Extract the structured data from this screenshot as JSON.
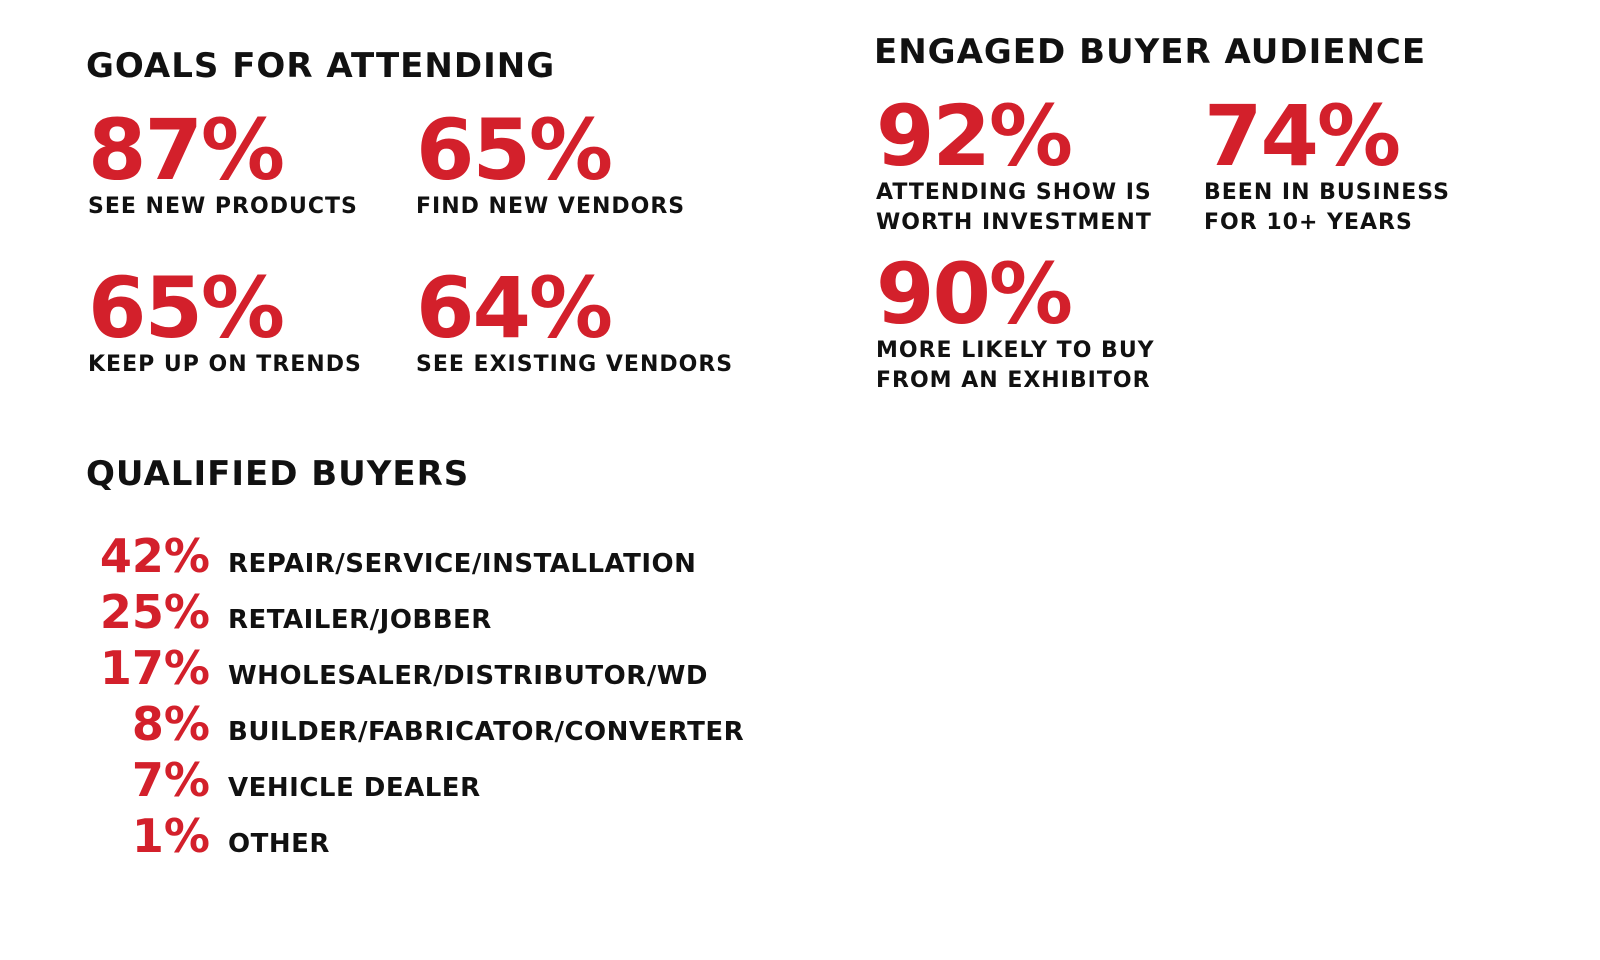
{
  "goals": {
    "title": "GOALS FOR ATTENDING",
    "stats": [
      {
        "value": "87%",
        "label": "SEE NEW PRODUCTS"
      },
      {
        "value": "65%",
        "label": "FIND NEW VENDORS"
      },
      {
        "value": "65%",
        "label": "KEEP UP ON TRENDS"
      },
      {
        "value": "64%",
        "label": "SEE EXISTING VENDORS"
      }
    ]
  },
  "engaged": {
    "title": "ENGAGED BUYER AUDIENCE",
    "stats": [
      {
        "value": "92%",
        "line1": "ATTENDING SHOW IS",
        "line2": "WORTH INVESTMENT"
      },
      {
        "value": "74%",
        "line1": "BEEN IN BUSINESS",
        "line2": "FOR 10+ YEARS"
      },
      {
        "value": "90%",
        "line1": "MORE LIKELY TO BUY",
        "line2": "FROM AN EXHIBITOR"
      }
    ]
  },
  "qualified": {
    "title": "QUALIFIED BUYERS",
    "rows": [
      {
        "value": "42%",
        "label": "REPAIR/SERVICE/INSTALLATION"
      },
      {
        "value": "25%",
        "label": "RETAILER/JOBBER"
      },
      {
        "value": "17%",
        "label": "WHOLESALER/DISTRIBUTOR/WD"
      },
      {
        "value": "8%",
        "label": "BUILDER/FABRICATOR/CONVERTER"
      },
      {
        "value": "7%",
        "label": "VEHICLE DEALER"
      },
      {
        "value": "1%",
        "label": "OTHER"
      }
    ]
  },
  "colors": {
    "accent": "#d3202b",
    "text": "#111111",
    "background": "#ffffff"
  }
}
